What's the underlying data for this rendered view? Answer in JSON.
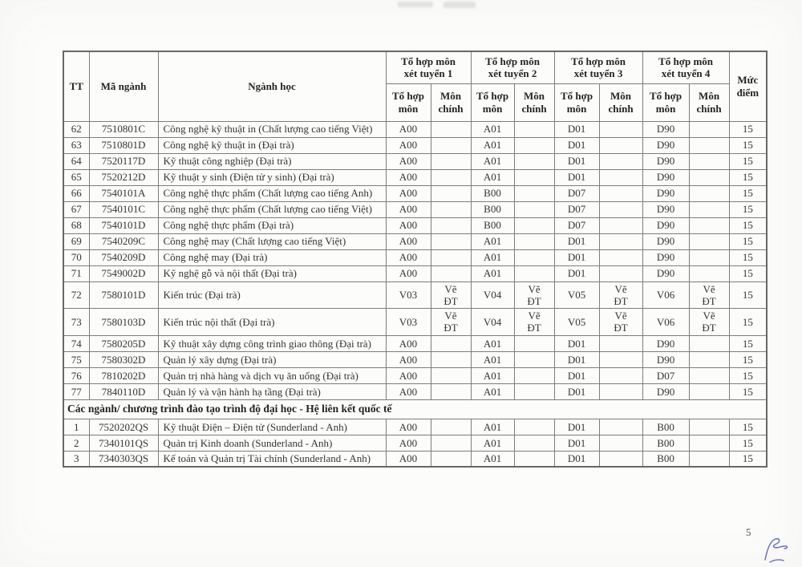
{
  "page": {
    "number": "5"
  },
  "table": {
    "header": {
      "tt": "TT",
      "ma_nganh": "Mã ngành",
      "nganh_hoc": "Ngành học",
      "groups": [
        "Tổ hợp môn\nxét tuyển 1",
        "Tổ hợp môn\nxét tuyển 2",
        "Tổ hợp môn\nxét tuyển 3",
        "Tổ hợp môn\nxét tuyển 4"
      ],
      "sub": {
        "to_hop_mon": "Tổ hợp\nmôn",
        "mon_chinh": "Môn\nchính"
      },
      "muc_diem": "Mức\nđiểm"
    },
    "rows": [
      {
        "tt": "62",
        "code": "7510801C",
        "name": "Công nghệ kỹ thuật in (Chất lượng cao tiếng Việt)",
        "combos": [
          "A00",
          "",
          "A01",
          "",
          "D01",
          "",
          "D90",
          ""
        ],
        "score": "15"
      },
      {
        "tt": "63",
        "code": "7510801D",
        "name": "Công nghệ kỹ thuật in (Đại trà)",
        "combos": [
          "A00",
          "",
          "A01",
          "",
          "D01",
          "",
          "D90",
          ""
        ],
        "score": "15"
      },
      {
        "tt": "64",
        "code": "7520117D",
        "name": "Kỹ thuật công nghiệp (Đại trà)",
        "combos": [
          "A00",
          "",
          "A01",
          "",
          "D01",
          "",
          "D90",
          ""
        ],
        "score": "15"
      },
      {
        "tt": "65",
        "code": "7520212D",
        "name": "Kỹ thuật y sinh (Điện tử y sinh) (Đại trà)",
        "combos": [
          "A00",
          "",
          "A01",
          "",
          "D01",
          "",
          "D90",
          ""
        ],
        "score": "15"
      },
      {
        "tt": "66",
        "code": "7540101A",
        "name": "Công nghệ thực phẩm (Chất lượng cao tiếng Anh)",
        "combos": [
          "A00",
          "",
          "B00",
          "",
          "D07",
          "",
          "D90",
          ""
        ],
        "score": "15"
      },
      {
        "tt": "67",
        "code": "7540101C",
        "name": "Công nghệ thực phẩm (Chất lượng cao tiếng Việt)",
        "combos": [
          "A00",
          "",
          "B00",
          "",
          "D07",
          "",
          "D90",
          ""
        ],
        "score": "15"
      },
      {
        "tt": "68",
        "code": "7540101D",
        "name": "Công nghệ thực phẩm (Đại trà)",
        "combos": [
          "A00",
          "",
          "B00",
          "",
          "D07",
          "",
          "D90",
          ""
        ],
        "score": "15"
      },
      {
        "tt": "69",
        "code": "7540209C",
        "name": "Công nghệ may (Chất lượng cao tiếng Việt)",
        "combos": [
          "A00",
          "",
          "A01",
          "",
          "D01",
          "",
          "D90",
          ""
        ],
        "score": "15"
      },
      {
        "tt": "70",
        "code": "7540209D",
        "name": "Công nghệ may (Đại trà)",
        "combos": [
          "A00",
          "",
          "A01",
          "",
          "D01",
          "",
          "D90",
          ""
        ],
        "score": "15"
      },
      {
        "tt": "71",
        "code": "7549002D",
        "name": "Kỹ nghệ gỗ và nội thất (Đại trà)",
        "combos": [
          "A00",
          "",
          "A01",
          "",
          "D01",
          "",
          "D90",
          ""
        ],
        "score": "15"
      },
      {
        "tt": "72",
        "code": "7580101D",
        "name": "Kiến trúc (Đại trà)",
        "combos": [
          "V03",
          "Vẽ\nĐT",
          "V04",
          "Vẽ\nĐT",
          "V05",
          "Vẽ\nĐT",
          "V06",
          "Vẽ\nĐT"
        ],
        "score": "15"
      },
      {
        "tt": "73",
        "code": "7580103D",
        "name": "Kiến trúc nội thất (Đại trà)",
        "combos": [
          "V03",
          "Vẽ\nĐT",
          "V04",
          "Vẽ\nĐT",
          "V05",
          "Vẽ\nĐT",
          "V06",
          "Vẽ\nĐT"
        ],
        "score": "15"
      },
      {
        "tt": "74",
        "code": "7580205D",
        "name": "Kỹ thuật xây dựng công trình giao thông (Đại trà)",
        "combos": [
          "A00",
          "",
          "A01",
          "",
          "D01",
          "",
          "D90",
          ""
        ],
        "score": "15"
      },
      {
        "tt": "75",
        "code": "7580302D",
        "name": "Quản lý xây dựng (Đại trà)",
        "combos": [
          "A00",
          "",
          "A01",
          "",
          "D01",
          "",
          "D90",
          ""
        ],
        "score": "15"
      },
      {
        "tt": "76",
        "code": "7810202D",
        "name": "Quản trị nhà hàng và dịch vụ ăn uống (Đại trà)",
        "combos": [
          "A00",
          "",
          "A01",
          "",
          "D01",
          "",
          "D07",
          ""
        ],
        "score": "15"
      },
      {
        "tt": "77",
        "code": "7840110D",
        "name": "Quản lý và vận hành hạ tầng (Đại trà)",
        "combos": [
          "A00",
          "",
          "A01",
          "",
          "D01",
          "",
          "D90",
          ""
        ],
        "score": "15"
      }
    ],
    "section_header": "Các ngành/ chương trình đào tạo trình độ đại học - Hệ liên kết quốc tế",
    "intl_rows": [
      {
        "tt": "1",
        "code": "7520202QS",
        "name": "Kỹ thuật Điện – Điện tử (Sunderland - Anh)",
        "combos": [
          "A00",
          "",
          "A01",
          "",
          "D01",
          "",
          "B00",
          ""
        ],
        "score": "15"
      },
      {
        "tt": "2",
        "code": "7340101QS",
        "name": "Quản trị Kinh doanh (Sunderland - Anh)",
        "combos": [
          "A00",
          "",
          "A01",
          "",
          "D01",
          "",
          "B00",
          ""
        ],
        "score": "15"
      },
      {
        "tt": "3",
        "code": "7340303QS",
        "name": "Kế toán và Quản trị Tài chính (Sunderland - Anh)",
        "combos": [
          "A00",
          "",
          "A01",
          "",
          "D01",
          "",
          "B00",
          ""
        ],
        "score": "15"
      }
    ]
  },
  "signature": {
    "color": "#7278c4"
  }
}
